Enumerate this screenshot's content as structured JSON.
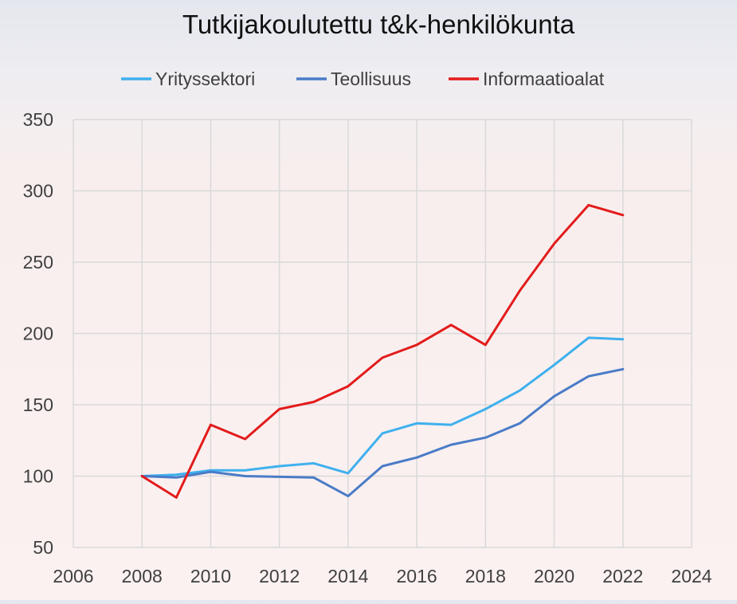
{
  "chart_data": {
    "type": "line",
    "title": "Tutkijakoulutettu t&k-henkilökunta",
    "xlabel": "",
    "ylabel": "",
    "xlim": [
      2006,
      2024
    ],
    "ylim": [
      50,
      350
    ],
    "x_ticks": [
      2006,
      2008,
      2010,
      2012,
      2014,
      2016,
      2018,
      2020,
      2022,
      2024
    ],
    "y_ticks": [
      50,
      100,
      150,
      200,
      250,
      300,
      350
    ],
    "grid": true,
    "legend_position": "top",
    "x": [
      2008,
      2009,
      2010,
      2011,
      2012,
      2013,
      2014,
      2015,
      2016,
      2017,
      2018,
      2019,
      2020,
      2021,
      2022
    ],
    "series": [
      {
        "name": "Yrityssektori",
        "color": "#3fb0ee",
        "values": [
          100,
          101,
          104,
          104,
          107,
          109,
          102,
          130,
          137,
          136,
          147,
          160,
          178,
          197,
          196
        ]
      },
      {
        "name": "Teollisuus",
        "color": "#4a7cc7",
        "values": [
          100,
          99,
          103,
          100,
          99.5,
          99,
          86,
          107,
          113,
          122,
          127,
          137,
          156,
          170,
          175
        ]
      },
      {
        "name": "Informaatioalat",
        "color": "#e31b1b",
        "values": [
          100,
          85,
          136,
          126,
          147,
          152,
          163,
          183,
          192,
          206,
          192,
          230,
          263,
          290,
          283
        ]
      }
    ]
  }
}
